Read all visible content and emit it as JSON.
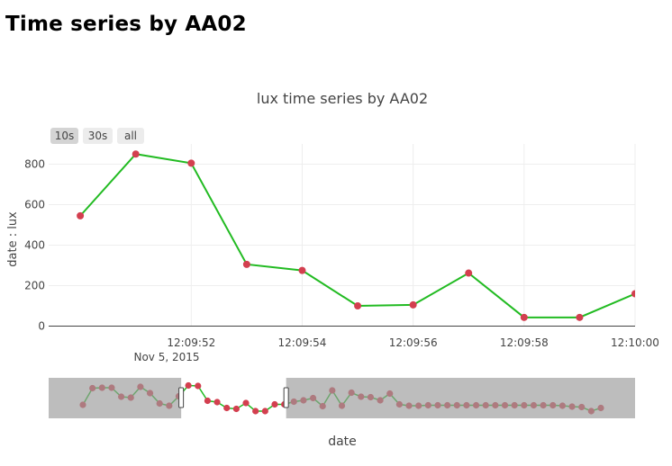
{
  "page": {
    "heading": "Time series by AA02"
  },
  "range_selector": {
    "buttons": [
      {
        "label": "10s",
        "active": true
      },
      {
        "label": "30s",
        "active": false
      },
      {
        "label": "all",
        "active": false
      }
    ]
  },
  "colors": {
    "line": "#22bb22",
    "marker": "#d33f4f",
    "rangeslider_mask": "#999999",
    "grid": "#eeeeee"
  },
  "chart_data": {
    "type": "line",
    "title": "lux time series by AA02",
    "xlabel": "date",
    "ylabel": "date : lux",
    "date_label": "Nov 5, 2015",
    "x_ticks": [
      "12:09:52",
      "12:09:54",
      "12:09:56",
      "12:09:58",
      "12:10:00"
    ],
    "y_ticks": [
      "0",
      "200",
      "400",
      "600",
      "800"
    ],
    "ylim": [
      0,
      900
    ],
    "grid": true,
    "series": [
      {
        "x": [
          "12:09:50.0",
          "12:09:51.0",
          "12:09:52.0",
          "12:09:53.0",
          "12:09:54.0",
          "12:09:55.0",
          "12:09:56.0",
          "12:09:57.0",
          "12:09:58.0",
          "12:09:59.0",
          "12:10:00.0"
        ],
        "y": [
          545,
          850,
          805,
          305,
          275,
          100,
          105,
          262,
          43,
          43,
          160
        ]
      }
    ],
    "rangeslider": {
      "selected_fraction": [
        0.226,
        0.405
      ],
      "values": [
        470,
        840,
        850,
        850,
        650,
        630,
        870,
        730,
        500,
        450,
        660,
        900,
        890,
        560,
        530,
        400,
        380,
        510,
        330,
        330,
        480,
        480,
        540,
        570,
        620,
        440,
        790,
        450,
        740,
        650,
        640,
        570,
        720,
        480,
        450,
        450,
        460,
        460,
        460,
        460,
        460,
        460,
        460,
        460,
        460,
        460,
        460,
        460,
        460,
        460,
        450,
        430,
        420,
        330,
        400
      ]
    }
  }
}
